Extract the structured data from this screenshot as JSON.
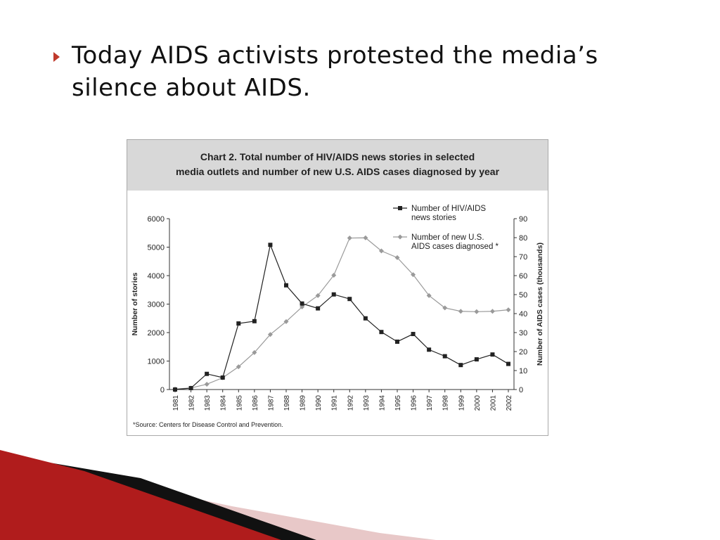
{
  "slide": {
    "bullet_text": "Today AIDS activists protested the media’s silence about AIDS."
  },
  "colors": {
    "bullet_arrow": "#c0392b",
    "stories_series": "#222222",
    "cases_series": "#9a9a9a",
    "header_band": "#d8d8d8",
    "decor_red": "#b01c1c",
    "decor_black": "#111111",
    "decor_pink": "#e8c8c8"
  },
  "chart_data": {
    "type": "line",
    "title": "Chart 2. Total number of HIV/AIDS news stories in selected\nmedia outlets and number of new U.S. AIDS cases diagnosed by year",
    "x": [
      "1981",
      "1982",
      "1983",
      "1984",
      "1985",
      "1986",
      "1987",
      "1988",
      "1989",
      "1990",
      "1991",
      "1992",
      "1993",
      "1994",
      "1995",
      "1996",
      "1997",
      "1998",
      "1999",
      "2000",
      "2001",
      "2002"
    ],
    "ylabel_left": "Number of stories",
    "ylabel_right": "Number of AIDS cases (thousands)",
    "ylim_left": [
      0,
      6000
    ],
    "ylim_right": [
      0,
      90
    ],
    "yticks_left": [
      0,
      1000,
      2000,
      3000,
      4000,
      5000,
      6000
    ],
    "yticks_right": [
      0,
      10,
      20,
      30,
      40,
      50,
      60,
      70,
      80,
      90
    ],
    "legend_position": "top-right",
    "grid": false,
    "series": [
      {
        "name": "Number of HIV/AIDS news stories",
        "axis": "left",
        "marker": "square",
        "values": [
          0,
          50,
          550,
          420,
          2320,
          2400,
          5080,
          3660,
          3020,
          2850,
          3340,
          3180,
          2500,
          2020,
          1680,
          1950,
          1400,
          1170,
          860,
          1060,
          1230,
          900
        ]
      },
      {
        "name": "Number of new U.S. AIDS cases diagnosed *",
        "axis": "right",
        "marker": "diamond",
        "values": [
          0.3,
          0.8,
          2.8,
          6.2,
          12.0,
          19.5,
          29.0,
          35.8,
          43.5,
          49.5,
          60.2,
          79.8,
          79.9,
          73.0,
          69.5,
          60.5,
          49.5,
          43.0,
          41.2,
          41.0,
          41.2,
          42.0
        ]
      }
    ],
    "source": "*Source: Centers for Disease Control and Prevention."
  }
}
